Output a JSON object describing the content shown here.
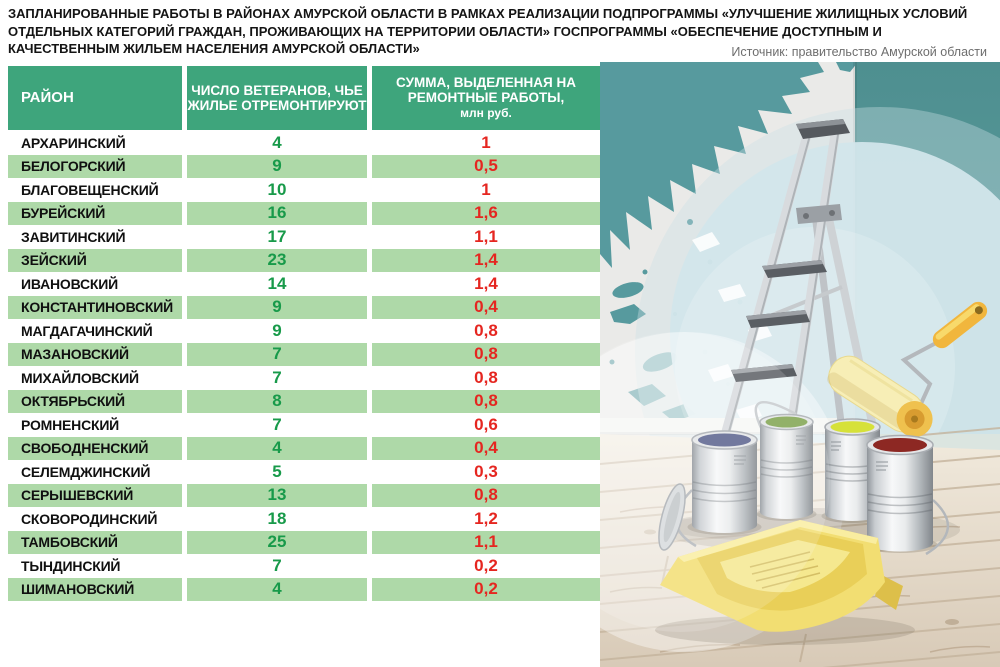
{
  "meta": {
    "title": "ЗАПЛАНИРОВАННЫЕ РАБОТЫ В РАЙОНАХ АМУРСКОЙ ОБЛАСТИ В РАМКАХ РЕАЛИЗАЦИИ ПОДПРОГРАММЫ «УЛУЧШЕНИЕ ЖИЛИЩНЫХ УСЛОВИЙ ОТДЕЛЬНЫХ КАТЕГОРИЙ ГРАЖДАН, ПРОЖИВАЮЩИХ НА ТЕРРИТОРИИ ОБЛАСТИ» ГОСПРОГРАММЫ «ОБЕСПЕЧЕНИЕ ДОСТУПНЫМ И КАЧЕСТВЕННЫМ ЖИЛЬЕМ НАСЕЛЕНИЯ АМУРСКОЙ ОБЛАСТИ»",
    "source": "Источник: правительство Амурской области"
  },
  "table": {
    "headers": {
      "district": "РАЙОН",
      "veterans": "ЧИСЛО ВЕТЕРАНОВ, ЧЬЕ ЖИЛЬЕ ОТРЕМОНТИРУЮТ",
      "sum_main": "СУММА, ВЫДЕЛЕННАЯ НА РЕМОНТНЫЕ РАБОТЫ,",
      "sum_sub": "млн руб."
    },
    "rows": [
      {
        "district": "АРХАРИНСКИЙ",
        "veterans": "4",
        "sum": "1"
      },
      {
        "district": "БЕЛОГОРСКИЙ",
        "veterans": "9",
        "sum": "0,5"
      },
      {
        "district": "БЛАГОВЕЩЕНСКИЙ",
        "veterans": "10",
        "sum": "1"
      },
      {
        "district": "БУРЕЙСКИЙ",
        "veterans": "16",
        "sum": "1,6"
      },
      {
        "district": "ЗАВИТИНСКИЙ",
        "veterans": "17",
        "sum": "1,1"
      },
      {
        "district": "ЗЕЙСКИЙ",
        "veterans": "23",
        "sum": "1,4"
      },
      {
        "district": "ИВАНОВСКИЙ",
        "veterans": "14",
        "sum": "1,4"
      },
      {
        "district": "КОНСТАНТИНОВСКИЙ",
        "veterans": "9",
        "sum": "0,4"
      },
      {
        "district": "МАГДАГАЧИНСКИЙ",
        "veterans": "9",
        "sum": "0,8"
      },
      {
        "district": "МАЗАНОВСКИЙ",
        "veterans": "7",
        "sum": "0,8"
      },
      {
        "district": "МИХАЙЛОВСКИЙ",
        "veterans": "7",
        "sum": "0,8"
      },
      {
        "district": "ОКТЯБРЬСКИЙ",
        "veterans": "8",
        "sum": "0,8"
      },
      {
        "district": "РОМНЕНСКИЙ",
        "veterans": "7",
        "sum": "0,6"
      },
      {
        "district": "СВОБОДНЕНСКИЙ",
        "veterans": "4",
        "sum": "0,4"
      },
      {
        "district": "СЕЛЕМДЖИНСКИЙ",
        "veterans": "5",
        "sum": "0,3"
      },
      {
        "district": "СЕРЫШЕВСКИЙ",
        "veterans": "13",
        "sum": "0,8"
      },
      {
        "district": "СКОВОРОДИНСКИЙ",
        "veterans": "18",
        "sum": "1,2"
      },
      {
        "district": "ТАМБОВСКИЙ",
        "veterans": "25",
        "sum": "1,1"
      },
      {
        "district": "ТЫНДИНСКИЙ",
        "veterans": "7",
        "sum": "0,2"
      },
      {
        "district": "ШИМАНОВСКИЙ",
        "veterans": "4",
        "sum": "0,2"
      }
    ]
  },
  "colors": {
    "header_green": "#3ea57c",
    "row_green": "#aed9a8",
    "number_green": "#189a4a",
    "number_red": "#e52620",
    "wall_teal": "#4e8f90",
    "patch_teal": "#579a9e",
    "circle_blue": "#d2e6eb",
    "roller_yellow": "#f2b73e",
    "tray_yellow": "#f2de72",
    "paint_blue": "#57608c",
    "paint_green": "#7ea24d",
    "paint_yellow": "#d6e139",
    "paint_red": "#8d2823"
  },
  "chart_data": {
    "type": "table",
    "title": "Запланированные работы в районах Амурской области в рамках реализации подпрограммы «Улучшение жилищных условий отдельных категорий граждан, проживающих на территории области» госпрограммы «Обеспечение доступным и качественным жильем населения Амурской области»",
    "source": "Источник: правительство Амурской области",
    "columns": [
      "Район",
      "Число ветеранов, чье жилье отремонтируют",
      "Сумма, выделенная на ремонтные работы, млн руб."
    ],
    "rows": [
      [
        "Архаринский",
        4,
        1
      ],
      [
        "Белогорский",
        9,
        0.5
      ],
      [
        "Благовещенский",
        10,
        1
      ],
      [
        "Бурейский",
        16,
        1.6
      ],
      [
        "Завитинский",
        17,
        1.1
      ],
      [
        "Зейский",
        23,
        1.4
      ],
      [
        "Ивановский",
        14,
        1.4
      ],
      [
        "Константиновский",
        9,
        0.4
      ],
      [
        "Магдагачинский",
        9,
        0.8
      ],
      [
        "Мазановский",
        7,
        0.8
      ],
      [
        "Михайловский",
        7,
        0.8
      ],
      [
        "Октябрьский",
        8,
        0.8
      ],
      [
        "Ромненский",
        7,
        0.6
      ],
      [
        "Свободненский",
        4,
        0.4
      ],
      [
        "Селемджинский",
        5,
        0.3
      ],
      [
        "Серышевский",
        13,
        0.8
      ],
      [
        "Сковородинский",
        18,
        1.2
      ],
      [
        "Тамбовский",
        25,
        1.1
      ],
      [
        "Тындинский",
        7,
        0.2
      ],
      [
        "Шимановский",
        4,
        0.2
      ]
    ],
    "units": "млн руб."
  }
}
